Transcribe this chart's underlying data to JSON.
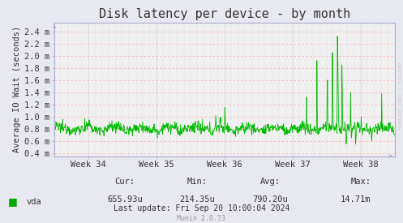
{
  "title": "Disk latency per device - by month",
  "ylabel": "Average IO Wait (seconds)",
  "bg_color": "#e8e8f0",
  "plot_bg_color": "#f0f0f0",
  "line_color": "#00bb00",
  "yticks": [
    0.4,
    0.6,
    0.8,
    1.0,
    1.2,
    1.4,
    1.6,
    1.8,
    2.0,
    2.2,
    2.4
  ],
  "ytick_labels": [
    "0.4 m",
    "0.6 m",
    "0.8 m",
    "1.0 m",
    "1.2 m",
    "1.4 m",
    "1.6 m",
    "1.8 m",
    "2.0 m",
    "2.2 m",
    "2.4 m"
  ],
  "xtick_labels": [
    "Week 34",
    "Week 35",
    "Week 36",
    "Week 37",
    "Week 38"
  ],
  "xtick_positions": [
    0.5,
    1.5,
    2.5,
    3.5,
    4.5
  ],
  "legend_label": "vda",
  "legend_color": "#00aa00",
  "footer_cur": "Cur:",
  "footer_cur_val": "655.93u",
  "footer_min": "Min:",
  "footer_min_val": "214.35u",
  "footer_avg": "Avg:",
  "footer_avg_val": "790.20u",
  "footer_max": "Max:",
  "footer_max_val": "14.71m",
  "footer_lastupdate": "Last update: Fri Sep 20 10:00:04 2024",
  "footer_munin": "Munin 2.0.73",
  "rrdtool_text": "RRDTOOL / TOBI OETIKER",
  "text_color": "#333333",
  "axis_color": "#aaaacc",
  "grid_color_h": "#ffaaaa",
  "grid_color_v": "#aaaacc",
  "ylim": [
    0.35,
    2.55
  ],
  "xlim": [
    0.0,
    5.0
  ],
  "title_fontsize": 11,
  "tick_fontsize": 7.5,
  "ylabel_fontsize": 7.5
}
